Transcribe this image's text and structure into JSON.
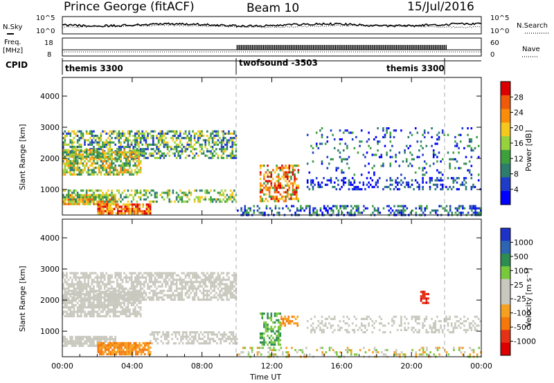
{
  "header": {
    "station": "Prince George (fitACF)",
    "beam": "Beam 10",
    "date": "15/Jul/2016"
  },
  "panels": {
    "nsky": {
      "label": "N.Sky",
      "right_label": "N.Search",
      "ticks_left": [
        "10^5",
        "10^0"
      ],
      "ticks_right": [
        "10^5",
        "10^0"
      ]
    },
    "freq": {
      "label_line1": "Freq.",
      "label_line2": "[MHz]",
      "right_label": "Nave",
      "ticks_left": [
        "18",
        "8"
      ],
      "ticks_right": [
        "60",
        "0"
      ]
    },
    "cpid": {
      "label": "CPID",
      "segments": [
        "themis 3300",
        "twofsound -3503",
        "themis 3300"
      ]
    }
  },
  "chart_data": [
    {
      "type": "heatmap",
      "name": "power",
      "ylabel": "Slant Range [km]",
      "ylim": [
        180,
        4600
      ],
      "yticks": [
        "1000",
        "2000",
        "3000",
        "4000"
      ],
      "colorbar_label": "Power [dB]",
      "colorbar_ticks": [
        "28",
        "24",
        "20",
        "16",
        "12",
        "8",
        "4"
      ],
      "colors": [
        "#0000ff",
        "#1e3cc8",
        "#2d7d6e",
        "#3ca03c",
        "#96d23c",
        "#f5c81e",
        "#fa8c0a",
        "#f05a0a",
        "#dc0000"
      ],
      "scatter_bands": [
        {
          "t": [
            0.0,
            10.0
          ],
          "r": [
            2000,
            2900
          ],
          "density": 0.55,
          "levels": [
            1,
            2,
            3,
            4,
            5
          ]
        },
        {
          "t": [
            0.0,
            4.5
          ],
          "r": [
            1500,
            2300
          ],
          "density": 0.7,
          "levels": [
            2,
            3,
            4,
            5,
            6
          ]
        },
        {
          "t": [
            0.0,
            3.0
          ],
          "r": [
            550,
            850
          ],
          "density": 0.85,
          "levels": [
            4,
            5,
            6,
            7
          ]
        },
        {
          "t": [
            2.0,
            5.0
          ],
          "r": [
            250,
            550
          ],
          "density": 0.8,
          "levels": [
            5,
            6,
            7,
            8
          ]
        },
        {
          "t": [
            0.0,
            10.0
          ],
          "r": [
            600,
            1000
          ],
          "density": 0.45,
          "levels": [
            2,
            3,
            4,
            5
          ]
        },
        {
          "t": [
            11.3,
            13.5
          ],
          "r": [
            600,
            1800
          ],
          "density": 0.5,
          "levels": [
            3,
            5,
            6,
            7,
            8
          ]
        },
        {
          "t": [
            10.0,
            24.0
          ],
          "r": [
            180,
            500
          ],
          "density": 0.35,
          "levels": [
            0,
            1,
            2,
            3
          ]
        },
        {
          "t": [
            14.0,
            24.0
          ],
          "r": [
            1000,
            1400
          ],
          "density": 0.3,
          "levels": [
            0,
            1,
            2
          ]
        },
        {
          "t": [
            14.0,
            24.0
          ],
          "r": [
            1500,
            3000
          ],
          "density": 0.12,
          "levels": [
            0,
            1,
            2,
            3
          ]
        }
      ]
    },
    {
      "type": "heatmap",
      "name": "velocity",
      "ylabel": "Slant Range [km]",
      "ylim": [
        180,
        4600
      ],
      "yticks": [
        "1000",
        "2000",
        "3000",
        "4000"
      ],
      "colorbar_label": "Velocity [m s⁻¹]",
      "colorbar_ticks": [
        "1000",
        "500",
        "100",
        "25",
        "-25",
        "-100",
        "-500",
        "-1000"
      ],
      "colors": [
        "#1e32c8",
        "#2d64b4",
        "#2d8c50",
        "#78c83c",
        "#c8c8be",
        "#c8c8be",
        "#f5a01e",
        "#f5780a",
        "#e63214",
        "#dc0000"
      ],
      "scatter_bands": [
        {
          "t": [
            0.0,
            10.0
          ],
          "r": [
            2000,
            2900
          ],
          "density": 0.65,
          "levels": [
            4,
            5
          ]
        },
        {
          "t": [
            0.0,
            4.5
          ],
          "r": [
            1500,
            2300
          ],
          "density": 0.75,
          "levels": [
            4,
            5
          ]
        },
        {
          "t": [
            0.0,
            3.0
          ],
          "r": [
            550,
            850
          ],
          "density": 0.85,
          "levels": [
            4,
            5
          ]
        },
        {
          "t": [
            2.0,
            5.0
          ],
          "r": [
            250,
            650
          ],
          "density": 0.85,
          "levels": [
            6,
            7
          ]
        },
        {
          "t": [
            5.0,
            10.0
          ],
          "r": [
            600,
            1000
          ],
          "density": 0.55,
          "levels": [
            4,
            5
          ]
        },
        {
          "t": [
            11.3,
            12.5
          ],
          "r": [
            600,
            1600
          ],
          "density": 0.55,
          "levels": [
            2,
            3
          ]
        },
        {
          "t": [
            12.5,
            13.5
          ],
          "r": [
            1200,
            1500
          ],
          "density": 0.5,
          "levels": [
            6,
            7
          ]
        },
        {
          "t": [
            10.0,
            24.0
          ],
          "r": [
            180,
            500
          ],
          "density": 0.25,
          "levels": [
            3,
            4,
            6
          ]
        },
        {
          "t": [
            14.0,
            24.0
          ],
          "r": [
            1000,
            1500
          ],
          "density": 0.3,
          "levels": [
            4,
            5
          ]
        },
        {
          "t": [
            20.5,
            21.0
          ],
          "r": [
            1900,
            2300
          ],
          "density": 0.6,
          "levels": [
            8,
            9
          ]
        }
      ]
    }
  ],
  "xaxis": {
    "label": "Time UT",
    "xlim": [
      0,
      24
    ],
    "ticks": [
      "00:00",
      "04:00",
      "08:00",
      "12:00",
      "16:00",
      "20:00",
      "00:00"
    ]
  }
}
